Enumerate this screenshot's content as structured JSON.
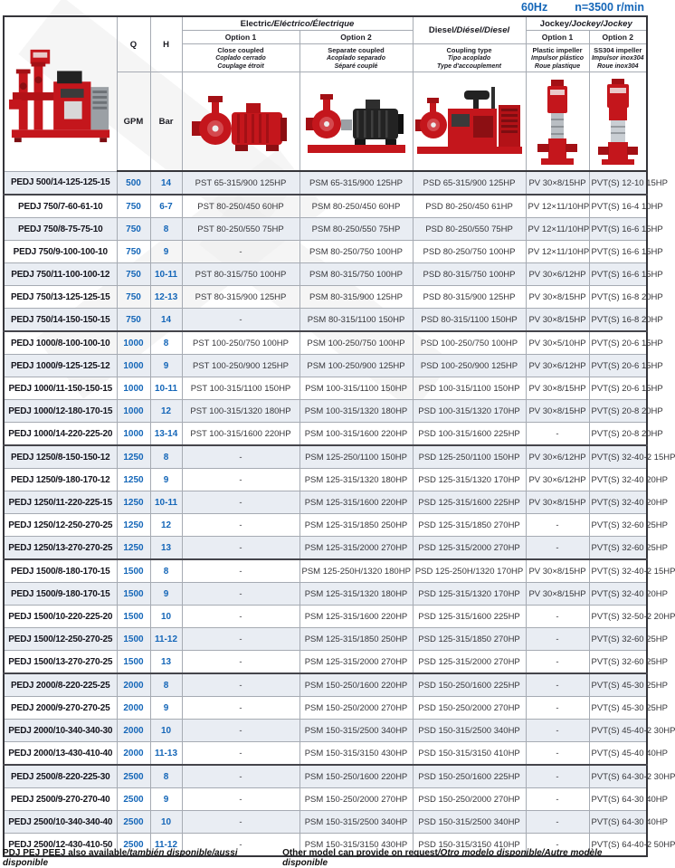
{
  "page": {
    "frequency": "60Hz",
    "speed": "n=3500 r/min"
  },
  "header": {
    "q": {
      "label": "Q",
      "unit": "GPM"
    },
    "h": {
      "label": "H",
      "unit": "Bar"
    },
    "electric": {
      "title": "Electric",
      "title_intl": "/Eléctrico/Électrique",
      "option1": {
        "label": "Option 1",
        "desc": [
          "Close coupled",
          "Coplado cerrado",
          "Couplage étroit"
        ]
      },
      "option2": {
        "label": "Option 2",
        "desc": [
          "Separate coupled",
          "Acoplado separado",
          "Séparé couplé"
        ]
      }
    },
    "diesel": {
      "title": "Diesel",
      "title_intl": "/Diésel/Diesel",
      "desc": [
        "Coupling type",
        "Tipo acoplado",
        "Type d'accouplement"
      ]
    },
    "jockey": {
      "title": "Jockey",
      "title_intl": "/Jockey/Jockey",
      "option1": {
        "label": "Option 1",
        "desc": [
          "Plastic impeller",
          "Impulsor plástico",
          "Roue plastique"
        ]
      },
      "option2": {
        "label": "Option 2",
        "desc": [
          "SS304 impeller",
          "Impulsor inox304",
          "Roue inox304"
        ]
      }
    }
  },
  "images": {
    "pump_set": "fire-pump-set-photo",
    "close_coupled": "close-coupled-pump-photo",
    "separate_coupled": "separate-coupled-pump-photo",
    "diesel": "diesel-engine-pump-photo",
    "jockey_plastic": "vertical-jockey-pump-photo",
    "jockey_ss304": "vertical-jockey-pump-ss304-photo"
  },
  "rows": [
    {
      "model": "PEDJ 500/14-125-125-15",
      "q": "500",
      "h": "14",
      "pst": "PST 65-315/900 125HP",
      "psm": "PSM 65-315/900 125HP",
      "psd": "PSD 65-315/900 125HP",
      "pv": "PV 30×8/15HP",
      "pvt": "PVT(S) 12-10 15HP"
    },
    {
      "model": "PEDJ 750/7-60-61-10",
      "q": "750",
      "h": "6-7",
      "pst": "PST 80-250/450 60HP",
      "psm": "PSM 80-250/450 60HP",
      "psd": "PSD 80-250/450 61HP",
      "pv": "PV 12×11/10HP",
      "pvt": "PVT(S) 16-4 10HP"
    },
    {
      "model": "PEDJ 750/8-75-75-10",
      "q": "750",
      "h": "8",
      "pst": "PST 80-250/550 75HP",
      "psm": "PSM 80-250/550 75HP",
      "psd": "PSD 80-250/550 75HP",
      "pv": "PV 12×11/10HP",
      "pvt": "PVT(S) 16-6 15HP"
    },
    {
      "model": "PEDJ 750/9-100-100-10",
      "q": "750",
      "h": "9",
      "pst": "-",
      "psm": "PSM 80-250/750 100HP",
      "psd": "PSD 80-250/750 100HP",
      "pv": "PV 12×11/10HP",
      "pvt": "PVT(S) 16-6 15HP"
    },
    {
      "model": "PEDJ 750/11-100-100-12",
      "q": "750",
      "h": "10-11",
      "pst": "PST 80-315/750 100HP",
      "psm": "PSM 80-315/750 100HP",
      "psd": "PSD 80-315/750 100HP",
      "pv": "PV 30×6/12HP",
      "pvt": "PVT(S) 16-6 15HP"
    },
    {
      "model": "PEDJ 750/13-125-125-15",
      "q": "750",
      "h": "12-13",
      "pst": "PST 80-315/900 125HP",
      "psm": "PSM 80-315/900 125HP",
      "psd": "PSD 80-315/900 125HP",
      "pv": "PV 30×8/15HP",
      "pvt": "PVT(S) 16-8 20HP"
    },
    {
      "model": "PEDJ 750/14-150-150-15",
      "q": "750",
      "h": "14",
      "pst": "-",
      "psm": "PSM 80-315/1100 150HP",
      "psd": "PSD 80-315/1100 150HP",
      "pv": "PV 30×8/15HP",
      "pvt": "PVT(S) 16-8 20HP"
    },
    {
      "model": "PEDJ 1000/8-100-100-10",
      "q": "1000",
      "h": "8",
      "pst": "PST 100-250/750 100HP",
      "psm": "PSM 100-250/750 100HP",
      "psd": "PSD 100-250/750 100HP",
      "pv": "PV 30×5/10HP",
      "pvt": "PVT(S) 20-6 15HP"
    },
    {
      "model": "PEDJ 1000/9-125-125-12",
      "q": "1000",
      "h": "9",
      "pst": "PST 100-250/900 125HP",
      "psm": "PSM 100-250/900 125HP",
      "psd": "PSD 100-250/900 125HP",
      "pv": "PV 30×6/12HP",
      "pvt": "PVT(S) 20-6 15HP"
    },
    {
      "model": "PEDJ 1000/11-150-150-15",
      "q": "1000",
      "h": "10-11",
      "pst": "PST 100-315/1100 150HP",
      "psm": "PSM 100-315/1100 150HP",
      "psd": "PSD 100-315/1100 150HP",
      "pv": "PV 30×8/15HP",
      "pvt": "PVT(S) 20-6 15HP"
    },
    {
      "model": "PEDJ 1000/12-180-170-15",
      "q": "1000",
      "h": "12",
      "pst": "PST 100-315/1320 180HP",
      "psm": "PSM 100-315/1320 180HP",
      "psd": "PSD 100-315/1320 170HP",
      "pv": "PV 30×8/15HP",
      "pvt": "PVT(S) 20-8 20HP"
    },
    {
      "model": "PEDJ 1000/14-220-225-20",
      "q": "1000",
      "h": "13-14",
      "pst": "PST 100-315/1600 220HP",
      "psm": "PSM 100-315/1600 220HP",
      "psd": "PSD 100-315/1600 225HP",
      "pv": "-",
      "pvt": "PVT(S) 20-8 20HP"
    },
    {
      "model": "PEDJ 1250/8-150-150-12",
      "q": "1250",
      "h": "8",
      "pst": "-",
      "psm": "PSM 125-250/1100 150HP",
      "psd": "PSD 125-250/1100 150HP",
      "pv": "PV 30×6/12HP",
      "pvt": "PVT(S) 32-40-2 15HP"
    },
    {
      "model": "PEDJ 1250/9-180-170-12",
      "q": "1250",
      "h": "9",
      "pst": "-",
      "psm": "PSM 125-315/1320 180HP",
      "psd": "PSD 125-315/1320 170HP",
      "pv": "PV 30×6/12HP",
      "pvt": "PVT(S) 32-40 20HP"
    },
    {
      "model": "PEDJ 1250/11-220-225-15",
      "q": "1250",
      "h": "10-11",
      "pst": "-",
      "psm": "PSM 125-315/1600 220HP",
      "psd": "PSD 125-315/1600 225HP",
      "pv": "PV 30×8/15HP",
      "pvt": "PVT(S) 32-40 20HP"
    },
    {
      "model": "PEDJ 1250/12-250-270-25",
      "q": "1250",
      "h": "12",
      "pst": "-",
      "psm": "PSM 125-315/1850 250HP",
      "psd": "PSD 125-315/1850 270HP",
      "pv": "-",
      "pvt": "PVT(S) 32-60 25HP"
    },
    {
      "model": "PEDJ 1250/13-270-270-25",
      "q": "1250",
      "h": "13",
      "pst": "-",
      "psm": "PSM 125-315/2000 270HP",
      "psd": "PSD 125-315/2000 270HP",
      "pv": "-",
      "pvt": "PVT(S) 32-60 25HP"
    },
    {
      "model": "PEDJ 1500/8-180-170-15",
      "q": "1500",
      "h": "8",
      "pst": "-",
      "psm": "PSM 125-250H/1320 180HP",
      "psd": "PSD 125-250H/1320 170HP",
      "pv": "PV 30×8/15HP",
      "pvt": "PVT(S) 32-40-2 15HP"
    },
    {
      "model": "PEDJ 1500/9-180-170-15",
      "q": "1500",
      "h": "9",
      "pst": "-",
      "psm": "PSM 125-315/1320 180HP",
      "psd": "PSD 125-315/1320 170HP",
      "pv": "PV 30×8/15HP",
      "pvt": "PVT(S) 32-40 20HP"
    },
    {
      "model": "PEDJ 1500/10-220-225-20",
      "q": "1500",
      "h": "10",
      "pst": "-",
      "psm": "PSM 125-315/1600 220HP",
      "psd": "PSD 125-315/1600 225HP",
      "pv": "-",
      "pvt": "PVT(S) 32-50-2 20HP"
    },
    {
      "model": "PEDJ 1500/12-250-270-25",
      "q": "1500",
      "h": "11-12",
      "pst": "-",
      "psm": "PSM 125-315/1850 250HP",
      "psd": "PSD 125-315/1850 270HP",
      "pv": "-",
      "pvt": "PVT(S) 32-60 25HP"
    },
    {
      "model": "PEDJ 1500/13-270-270-25",
      "q": "1500",
      "h": "13",
      "pst": "-",
      "psm": "PSM 125-315/2000 270HP",
      "psd": "PSD 125-315/2000 270HP",
      "pv": "-",
      "pvt": "PVT(S) 32-60 25HP"
    },
    {
      "model": "PEDJ 2000/8-220-225-25",
      "q": "2000",
      "h": "8",
      "pst": "-",
      "psm": "PSM 150-250/1600 220HP",
      "psd": "PSD 150-250/1600 225HP",
      "pv": "-",
      "pvt": "PVT(S) 45-30 25HP"
    },
    {
      "model": "PEDJ 2000/9-270-270-25",
      "q": "2000",
      "h": "9",
      "pst": "-",
      "psm": "PSM 150-250/2000 270HP",
      "psd": "PSD 150-250/2000 270HP",
      "pv": "-",
      "pvt": "PVT(S) 45-30 25HP"
    },
    {
      "model": "PEDJ 2000/10-340-340-30",
      "q": "2000",
      "h": "10",
      "pst": "-",
      "psm": "PSM 150-315/2500 340HP",
      "psd": "PSD 150-315/2500 340HP",
      "pv": "-",
      "pvt": "PVT(S) 45-40-2 30HP"
    },
    {
      "model": "PEDJ 2000/13-430-410-40",
      "q": "2000",
      "h": "11-13",
      "pst": "-",
      "psm": "PSM 150-315/3150 430HP",
      "psd": "PSD 150-315/3150 410HP",
      "pv": "-",
      "pvt": "PVT(S) 45-40 40HP"
    },
    {
      "model": "PEDJ 2500/8-220-225-30",
      "q": "2500",
      "h": "8",
      "pst": "-",
      "psm": "PSM 150-250/1600 220HP",
      "psd": "PSD 150-250/1600 225HP",
      "pv": "-",
      "pvt": "PVT(S) 64-30-2 30HP"
    },
    {
      "model": "PEDJ 2500/9-270-270-40",
      "q": "2500",
      "h": "9",
      "pst": "-",
      "psm": "PSM 150-250/2000 270HP",
      "psd": "PSD 150-250/2000 270HP",
      "pv": "-",
      "pvt": "PVT(S) 64-30 40HP"
    },
    {
      "model": "PEDJ 2500/10-340-340-40",
      "q": "2500",
      "h": "10",
      "pst": "-",
      "psm": "PSM 150-315/2500 340HP",
      "psd": "PSD 150-315/2500 340HP",
      "pv": "-",
      "pvt": "PVT(S) 64-30 40HP"
    },
    {
      "model": "PEDJ 2500/12-430-410-50",
      "q": "2500",
      "h": "11-12",
      "pst": "-",
      "psm": "PSM 150-315/3150 430HP",
      "psd": "PSD 150-315/3150 410HP",
      "pv": "-",
      "pvt": "PVT(S) 64-40-2 50HP"
    }
  ],
  "footer": {
    "left_bold": "PDJ PEJ PEEJ also available",
    "left_italic": "/también disponible/aussi disponible",
    "right_bold": "Other model can provide on request",
    "right_italic": "/Otro modelo disponible/Autre modèle disponible"
  },
  "colors": {
    "accent_blue": "#1466b8",
    "row_alt": "#e9edf3",
    "pump_red": "#c4161c",
    "border_dark": "#35353a"
  }
}
